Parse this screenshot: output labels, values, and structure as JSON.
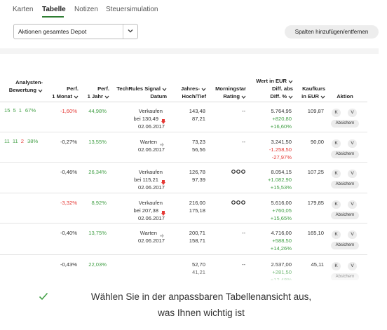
{
  "tabs": [
    {
      "label": "Karten"
    },
    {
      "label": "Tabelle",
      "active": true
    },
    {
      "label": "Notizen"
    },
    {
      "label": "Steuersimulation"
    }
  ],
  "depot_select": {
    "value": "Aktionen gesamtes Depot"
  },
  "columns_button": {
    "label": "Spalten hinzufügen/entfernen"
  },
  "headers": {
    "bewertung": [
      "Analysten-",
      "Bewertung"
    ],
    "perf_monat": [
      "Perf.",
      "1 Monat"
    ],
    "perf_jahr": [
      "Perf.",
      "1 Jahr"
    ],
    "signal": [
      "TechRules Signal",
      "Datum"
    ],
    "hochtief": [
      "Jahres-",
      "Hoch/Tief"
    ],
    "morningstar": [
      "Morningstar",
      "Rating"
    ],
    "wert": [
      "Wert in EUR",
      "Diff. abs",
      "Diff. %"
    ],
    "kaufkurs": [
      "Kaufkurs",
      "in EUR"
    ],
    "aktion": [
      "Aktion"
    ]
  },
  "rows": [
    {
      "rating": {
        "a": "15",
        "b": "5",
        "c": "1",
        "pct": "67%",
        "c_red": false
      },
      "perf_monat": "-1,60%",
      "perf_monat_color": "red",
      "perf_jahr": "44,98%",
      "perf_jahr_color": "green",
      "signal": "Verkaufen",
      "signal_line2": "bei 130,49",
      "signal_dir": "down",
      "signal_date": "02.06.2017",
      "hoch": "143,48",
      "tief": "87,21",
      "morningstar": "--",
      "morningstar_stars": 0,
      "wert": "5.764,95",
      "diff_abs": "+820,80",
      "diff_pct": "+16,60%",
      "diff_color": "green",
      "kaufkurs": "109,87"
    },
    {
      "rating": {
        "a": "11",
        "b": "11",
        "c": "2",
        "pct": "38%",
        "c_red": true
      },
      "perf_monat": "-0,27%",
      "perf_monat_color": "",
      "perf_jahr": "13,55%",
      "perf_jahr_color": "green",
      "signal": "Warten",
      "signal_line2": "",
      "signal_dir": "flat",
      "signal_date": "02.06.2017",
      "hoch": "73,23",
      "tief": "56,56",
      "morningstar": "--",
      "morningstar_stars": 0,
      "wert": "3.241,50",
      "diff_abs": "-1.258,50",
      "diff_pct": "-27,97%",
      "diff_color": "red",
      "kaufkurs": "90,00"
    },
    {
      "rating": null,
      "perf_monat": "-0,46%",
      "perf_monat_color": "",
      "perf_jahr": "26,34%",
      "perf_jahr_color": "green",
      "signal": "Verkaufen",
      "signal_line2": "bei 115,21",
      "signal_dir": "down",
      "signal_date": "02.06.2017",
      "hoch": "126,78",
      "tief": "97,39",
      "morningstar": "",
      "morningstar_stars": 3,
      "wert": "8.054,15",
      "diff_abs": "+1.082,90",
      "diff_pct": "+15,53%",
      "diff_color": "green",
      "kaufkurs": "107,25"
    },
    {
      "rating": null,
      "perf_monat": "-3,32%",
      "perf_monat_color": "red",
      "perf_jahr": "8,92%",
      "perf_jahr_color": "green",
      "signal": "Verkaufen",
      "signal_line2": "bei 207,38",
      "signal_dir": "down",
      "signal_date": "02.06.2017",
      "hoch": "216,00",
      "tief": "175,18",
      "morningstar": "",
      "morningstar_stars": 3,
      "wert": "5.616,00",
      "diff_abs": "+760,05",
      "diff_pct": "+15,65%",
      "diff_color": "green",
      "kaufkurs": "179,85"
    },
    {
      "rating": null,
      "perf_monat": "-0,40%",
      "perf_monat_color": "",
      "perf_jahr": "13,75%",
      "perf_jahr_color": "green",
      "signal": "Warten",
      "signal_line2": "",
      "signal_dir": "flat",
      "signal_date": "02.06.2017",
      "hoch": "200,71",
      "tief": "158,71",
      "morningstar": "--",
      "morningstar_stars": 0,
      "wert": "4.716,00",
      "diff_abs": "+588,50",
      "diff_pct": "+14,26%",
      "diff_color": "green",
      "kaufkurs": "165,10"
    },
    {
      "rating": null,
      "perf_monat": "-0,43%",
      "perf_monat_color": "",
      "perf_jahr": "22,03%",
      "perf_jahr_color": "green",
      "signal": "",
      "signal_line2": "",
      "signal_dir": "",
      "signal_date": "",
      "hoch": "52,70",
      "tief": "41,21",
      "morningstar": "--",
      "morningstar_stars": 0,
      "wert": "2.537,00",
      "diff_abs": "+281,50",
      "diff_pct": "+12,48%",
      "diff_color": "green",
      "kaufkurs": "45,11"
    }
  ],
  "actions": {
    "k": "K",
    "v": "V",
    "absichern": "Absichern"
  },
  "footer": {
    "line1": "Wählen Sie in der anpassbaren Tabellenansicht aus,",
    "line2": "was Ihnen wichtig ist"
  },
  "colors": {
    "accent": "#2e7d32",
    "positive": "#43a047",
    "negative": "#e53935"
  },
  "icons": [
    "chevron-down-icon",
    "arrow-down-icon",
    "arrow-right-icon",
    "morningstar-circle-icon",
    "check-icon"
  ]
}
